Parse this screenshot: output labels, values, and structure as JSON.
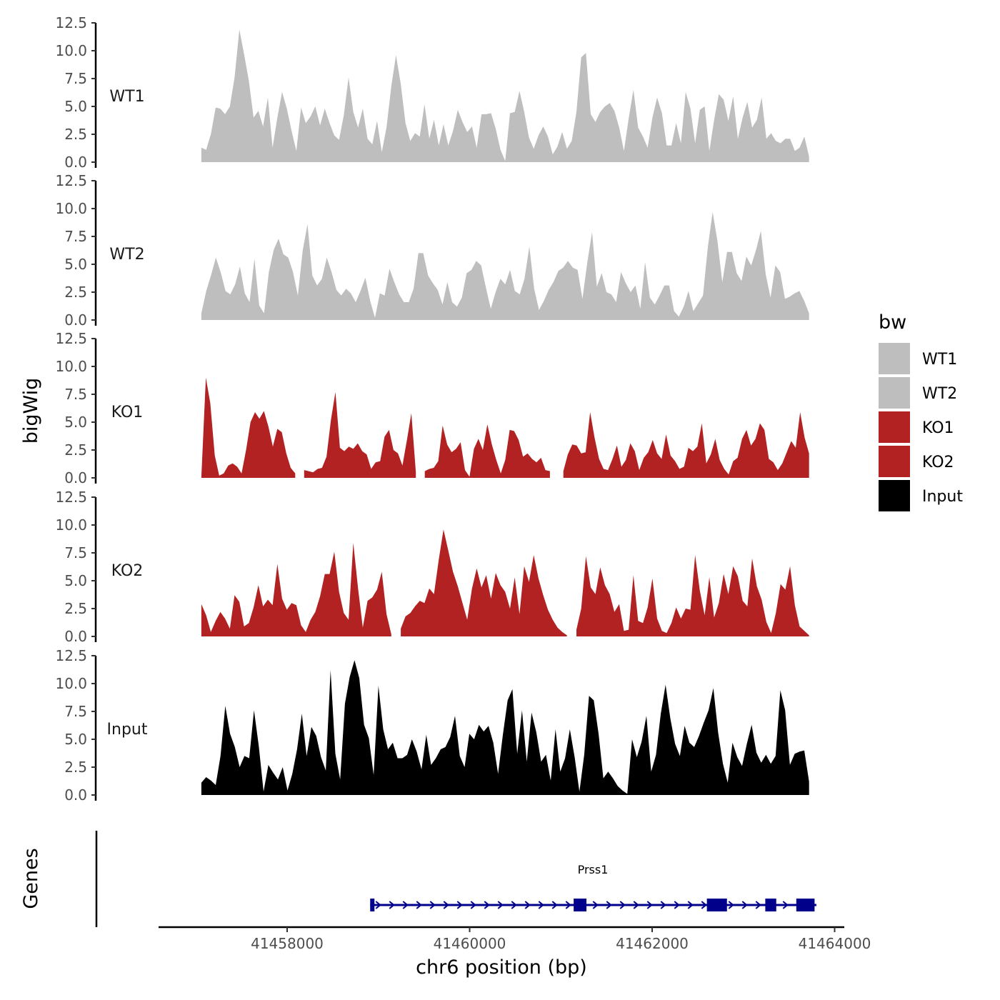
{
  "chart_data": {
    "type": "area",
    "ylabel": "bigWig",
    "xlabel": "chr6 position (bp)",
    "genes_label": "Genes",
    "legend_title": "bw",
    "xlim": [
      41456700,
      41464000
    ],
    "x_ticks": [
      41458000,
      41460000,
      41462000,
      41464000
    ],
    "x_tick_labels": [
      "41458000",
      "41460000",
      "41462000",
      "41464000"
    ],
    "ylim": [
      0,
      12.5
    ],
    "y_ticks": [
      0,
      2.5,
      5,
      7.5,
      10,
      12.5
    ],
    "y_tick_labels": [
      "0.0",
      "2.5",
      "5.0",
      "7.5",
      "10.0",
      "12.5"
    ],
    "x_range_data": [
      41457060,
      41463720
    ],
    "legend": [
      {
        "name": "WT1",
        "color": "#bebebe"
      },
      {
        "name": "WT2",
        "color": "#bebebe"
      },
      {
        "name": "KO1",
        "color": "#b22222"
      },
      {
        "name": "KO2",
        "color": "#b22222"
      },
      {
        "name": "Input",
        "color": "#000000"
      }
    ],
    "series": [
      {
        "name": "WT1",
        "color": "#bebebe",
        "values": [
          1.3,
          1.1,
          2.5,
          4.9,
          4.8,
          4.3,
          5.0,
          7.6,
          11.9,
          9.7,
          7.3,
          4.0,
          4.6,
          3.2,
          5.8,
          1.3,
          4.0,
          6.3,
          4.8,
          2.8,
          1.0,
          4.9,
          3.5,
          4.1,
          5.0,
          3.3,
          4.8,
          3.5,
          2.4,
          2.0,
          4.2,
          7.6,
          4.5,
          3.1,
          4.8,
          2.1,
          1.6,
          3.7,
          0.9,
          3.1,
          6.8,
          9.6,
          7.0,
          3.5,
          1.9,
          2.6,
          2.3,
          5.2,
          2.1,
          3.8,
          1.5,
          3.4,
          1.5,
          2.8,
          4.7,
          3.6,
          2.7,
          3.2,
          1.3,
          4.3,
          4.3,
          4.4,
          3.0,
          1.1,
          0.1,
          4.4,
          4.5,
          6.4,
          4.5,
          2.2,
          1.2,
          2.4,
          3.2,
          2.3,
          0.7,
          1.4,
          2.7,
          1.2,
          1.9,
          4.5,
          9.4,
          9.8,
          4.3,
          3.6,
          4.5,
          5.0,
          5.3,
          4.6,
          3.1,
          1.0,
          3.9,
          6.5,
          3.1,
          2.3,
          1.3,
          4.0,
          5.8,
          4.4,
          1.5,
          1.5,
          3.5,
          1.7,
          6.3,
          4.8,
          1.7,
          4.7,
          5.0,
          1.0,
          3.8,
          6.1,
          5.6,
          3.7,
          5.9,
          2.1,
          4.0,
          5.4,
          3.1,
          3.8,
          5.8,
          2.1,
          2.6,
          1.9,
          1.7,
          2.1,
          2.1,
          1.0,
          1.3,
          2.3,
          0.5
        ]
      },
      {
        "name": "WT2",
        "color": "#bebebe",
        "values": [
          0.6,
          2.6,
          4.0,
          5.6,
          4.3,
          2.6,
          2.3,
          3.2,
          4.8,
          2.4,
          1.6,
          5.5,
          1.3,
          0.6,
          4.3,
          6.3,
          7.3,
          5.9,
          5.6,
          4.3,
          2.2,
          6.2,
          8.6,
          4.0,
          3.1,
          3.7,
          5.6,
          4.3,
          2.7,
          2.2,
          2.8,
          2.4,
          1.6,
          2.6,
          3.8,
          1.7,
          0.2,
          2.4,
          2.2,
          4.6,
          3.4,
          2.3,
          1.6,
          1.6,
          2.8,
          6.0,
          6.0,
          4.0,
          3.3,
          2.7,
          1.4,
          3.4,
          1.6,
          1.2,
          2.0,
          4.2,
          4.5,
          5.3,
          4.9,
          2.9,
          1.0,
          2.5,
          3.7,
          3.2,
          4.5,
          2.6,
          2.3,
          3.7,
          6.6,
          2.8,
          0.9,
          1.7,
          2.7,
          3.4,
          4.4,
          4.7,
          5.3,
          4.7,
          4.5,
          1.9,
          5.1,
          7.9,
          3.0,
          4.2,
          2.5,
          2.3,
          1.6,
          4.3,
          3.3,
          2.5,
          3.1,
          1.0,
          5.2,
          2.0,
          1.4,
          2.2,
          3.1,
          3.1,
          0.8,
          0.3,
          1.2,
          2.6,
          0.8,
          1.5,
          2.2,
          6.5,
          9.7,
          7.1,
          3.4,
          6.1,
          6.1,
          4.2,
          3.5,
          5.7,
          4.9,
          6.3,
          8.0,
          4.1,
          2.0,
          4.9,
          4.3,
          1.9,
          2.1,
          2.4,
          2.6,
          1.7,
          0.6
        ]
      },
      {
        "name": "KO1",
        "color": "#b22222",
        "values": [
          0.1,
          9.0,
          6.7,
          2.0,
          0.2,
          0.4,
          1.1,
          1.3,
          1.0,
          0.4,
          2.5,
          5.0,
          5.9,
          5.3,
          6.0,
          4.6,
          2.8,
          4.4,
          4.1,
          2.2,
          0.9,
          0.4,
          null,
          0.7,
          0.6,
          0.5,
          0.8,
          0.9,
          1.9,
          5.2,
          7.7,
          2.7,
          2.4,
          2.8,
          2.6,
          3.1,
          2.4,
          2.1,
          0.8,
          1.4,
          1.5,
          3.7,
          4.3,
          2.5,
          2.2,
          1.1,
          3.4,
          5.8,
          0.5,
          null,
          0.6,
          0.8,
          0.9,
          1.5,
          4.7,
          3.0,
          2.3,
          2.6,
          3.2,
          0.7,
          0.1,
          2.6,
          3.5,
          2.5,
          4.8,
          3.0,
          1.6,
          0.4,
          1.6,
          4.3,
          4.2,
          3.4,
          1.9,
          2.2,
          1.7,
          1.4,
          1.8,
          0.7,
          0.6,
          null,
          null,
          0.6,
          2.1,
          3.0,
          2.9,
          2.2,
          2.3,
          5.9,
          3.6,
          1.7,
          0.8,
          0.7,
          1.7,
          2.9,
          1.0,
          1.6,
          3.1,
          2.4,
          0.7,
          1.8,
          2.3,
          3.4,
          2.2,
          1.7,
          3.9,
          2.0,
          1.5,
          0.8,
          1.0,
          2.7,
          2.4,
          2.8,
          4.9,
          1.3,
          2.1,
          3.5,
          1.6,
          0.8,
          0.3,
          1.5,
          1.8,
          3.5,
          4.3,
          2.9,
          3.5,
          4.9,
          4.3,
          1.7,
          1.4,
          0.7,
          1.3,
          2.3,
          3.3,
          2.7,
          5.9,
          3.6,
          2.2
        ]
      },
      {
        "name": "KO2",
        "color": "#b22222",
        "values": [
          2.9,
          1.9,
          0.4,
          1.4,
          2.2,
          1.6,
          0.7,
          3.7,
          3.1,
          0.9,
          1.2,
          2.6,
          4.6,
          2.7,
          3.3,
          2.8,
          6.5,
          3.4,
          2.4,
          3.0,
          2.8,
          1.0,
          0.4,
          1.5,
          2.2,
          3.6,
          5.6,
          5.6,
          7.6,
          4.0,
          2.1,
          1.5,
          8.4,
          4.3,
          0.8,
          3.2,
          3.5,
          4.2,
          5.8,
          2.0,
          0.2,
          null,
          0.7,
          1.8,
          2.1,
          2.7,
          3.2,
          3.0,
          4.3,
          3.8,
          6.9,
          9.6,
          7.7,
          5.8,
          4.5,
          3.0,
          1.5,
          4.3,
          6.1,
          4.4,
          5.5,
          3.4,
          5.7,
          4.6,
          4.0,
          2.5,
          5.3,
          2.0,
          6.3,
          4.9,
          7.3,
          5.2,
          3.7,
          2.4,
          1.5,
          0.8,
          0.4,
          0.1,
          null,
          0.6,
          2.5,
          7.2,
          4.4,
          3.8,
          6.2,
          4.6,
          3.8,
          2.2,
          2.9,
          0.5,
          0.6,
          5.5,
          1.4,
          1.2,
          2.6,
          5.2,
          1.6,
          0.5,
          0.3,
          1.2,
          2.6,
          1.6,
          2.5,
          2.4,
          7.3,
          4.1,
          1.9,
          5.3,
          1.7,
          3.0,
          5.6,
          3.8,
          6.3,
          5.4,
          3.2,
          2.7,
          7.0,
          4.5,
          3.3,
          1.3,
          0.3,
          2.1,
          4.7,
          4.2,
          6.3,
          2.8,
          0.9,
          0.5,
          0.1
        ]
      },
      {
        "name": "Input",
        "color": "#000000",
        "values": [
          1.1,
          1.6,
          1.3,
          0.9,
          3.5,
          8.0,
          5.5,
          4.3,
          2.5,
          3.5,
          3.3,
          7.6,
          4.4,
          0.3,
          2.7,
          2.0,
          1.4,
          2.5,
          0.4,
          1.9,
          4.1,
          7.3,
          3.5,
          6.1,
          5.3,
          3.4,
          2.2,
          11.2,
          3.7,
          1.4,
          8.2,
          10.6,
          12.1,
          10.5,
          6.3,
          5.1,
          1.8,
          9.8,
          5.9,
          4.1,
          4.7,
          3.3,
          3.3,
          3.6,
          5.0,
          3.9,
          2.3,
          5.4,
          2.7,
          3.3,
          4.1,
          4.3,
          5.2,
          7.1,
          3.5,
          2.5,
          5.5,
          5.0,
          6.3,
          5.7,
          6.2,
          4.7,
          1.9,
          5.4,
          8.5,
          9.5,
          3.7,
          7.6,
          3.0,
          7.4,
          5.6,
          3.0,
          3.6,
          1.3,
          5.9,
          2.1,
          3.3,
          5.9,
          3.4,
          0.3,
          3.6,
          8.9,
          8.5,
          5.5,
          1.5,
          2.1,
          1.5,
          0.8,
          0.4,
          0.1,
          5.0,
          3.4,
          4.8,
          7.1,
          2.1,
          3.6,
          7.3,
          9.9,
          6.9,
          4.6,
          3.5,
          6.2,
          4.7,
          4.3,
          5.3,
          6.5,
          7.6,
          9.6,
          5.6,
          2.8,
          1.1,
          4.7,
          3.4,
          2.6,
          4.6,
          6.3,
          3.8,
          2.9,
          3.6,
          2.8,
          3.5,
          9.4,
          7.6,
          2.7,
          3.7,
          3.9,
          4.0,
          1.2
        ]
      }
    ],
    "gene_track": {
      "gene": "Prss1",
      "start": 41458910,
      "end": 41463800,
      "strand": "+",
      "exons": [
        [
          41458910,
          41458940
        ],
        [
          41461140,
          41461280
        ],
        [
          41462600,
          41462820
        ],
        [
          41463240,
          41463360
        ],
        [
          41463580,
          41463780
        ]
      ],
      "color": "#00008b"
    }
  }
}
